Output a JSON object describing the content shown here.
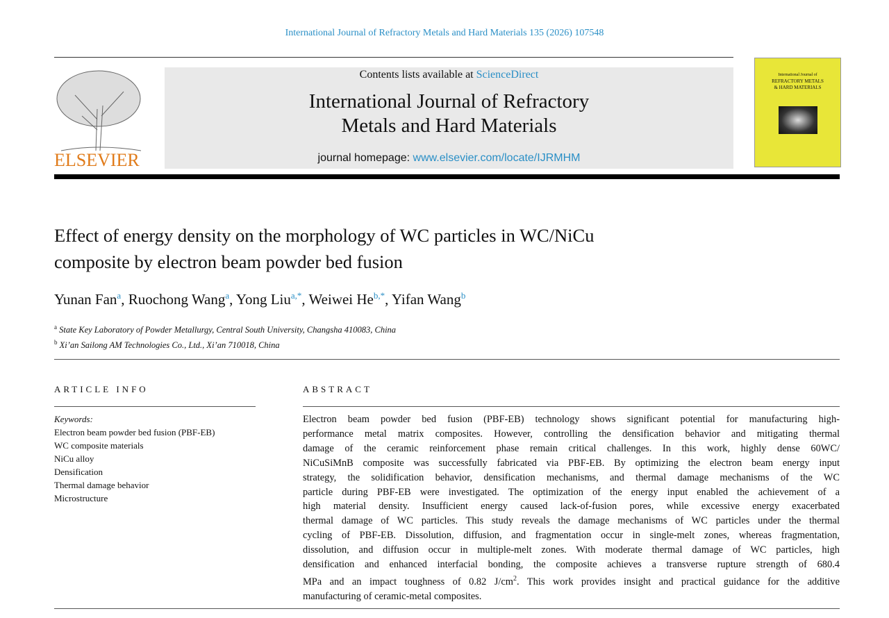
{
  "journal_ref": "International Journal of Refractory Metals and Hard Materials 135 (2026) 107548",
  "banner": {
    "contents_prefix": "Contents lists available at ",
    "contents_link": "ScienceDirect",
    "journal_title_1": "International Journal of Refractory",
    "journal_title_2": "Metals and Hard Materials",
    "homepage_prefix": "journal homepage: ",
    "homepage_link": "www.elsevier.com/locate/IJRMHM"
  },
  "publisher_logo": "ELSEVIER",
  "cover": {
    "line1": "International Journal of",
    "line2": "REFRACTORY METALS",
    "line3": "& HARD MATERIALS"
  },
  "colors": {
    "link": "#2a8fc6",
    "elsevier": "#e07b1a",
    "cover": "#e8e638"
  },
  "title_1": "Effect of energy density on the morphology of WC particles in WC/NiCu",
  "title_2": "composite by electron beam powder bed fusion",
  "authors": [
    {
      "name": "Yunan Fan",
      "aff": "a",
      "sep": ", "
    },
    {
      "name": "Ruochong Wang",
      "aff": "a",
      "sep": ", "
    },
    {
      "name": "Yong Liu",
      "aff": "a,*",
      "sep": ", "
    },
    {
      "name": "Weiwei He",
      "aff": "b,*",
      "sep": ", "
    },
    {
      "name": "Yifan Wang",
      "aff": "b",
      "sep": ""
    }
  ],
  "affiliations": [
    {
      "key": "a",
      "text": "State Key Laboratory of Powder Metallurgy, Central South University, Changsha 410083, China"
    },
    {
      "key": "b",
      "text": "Xi’an Sailong AM Technologies Co., Ltd., Xi’an 710018, China"
    }
  ],
  "article_info_heading": "ARTICLE INFO",
  "abstract_heading": "ABSTRACT",
  "keywords_label": "Keywords:",
  "keywords": [
    "Electron beam powder bed fusion (PBF-EB)",
    "WC composite materials",
    "NiCu alloy",
    "Densification",
    "Thermal damage behavior",
    "Microstructure"
  ],
  "abstract_lines": [
    "Electron beam powder bed fusion (PBF-EB) technology shows significant potential for manufacturing high-",
    "performance metal matrix composites. However, controlling the densification behavior and mitigating thermal",
    "damage of the ceramic reinforcement phase remain critical challenges. In this work, highly dense 60WC/",
    "NiCuSiMnB composite was successfully fabricated via PBF-EB. By optimizing the electron beam energy input",
    "strategy, the solidification behavior, densification mechanisms, and thermal damage mechanisms of the WC",
    "particle during PBF-EB were investigated. The optimization of the energy input enabled the achievement of a",
    "high material density. Insufficient energy caused lack-of-fusion pores, while excessive energy exacerbated",
    "thermal damage of WC particles. This study reveals the damage mechanisms of WC particles under the thermal",
    "cycling of PBF-EB. Dissolution, diffusion, and fragmentation occur in single-melt zones, whereas fragmentation,",
    "dissolution, and diffusion occur in multiple-melt zones. With moderate thermal damage of WC particles, high",
    "densification and enhanced interfacial bonding, the composite achieves a transverse rupture strength of 680.4",
    "MPa and an impact toughness of 0.82 J/cm",
    "manufacturing of ceramic-metal composites."
  ],
  "abstract_sup": "2",
  "abstract_line12_tail": ". This work provides insight and practical guidance for the additive"
}
